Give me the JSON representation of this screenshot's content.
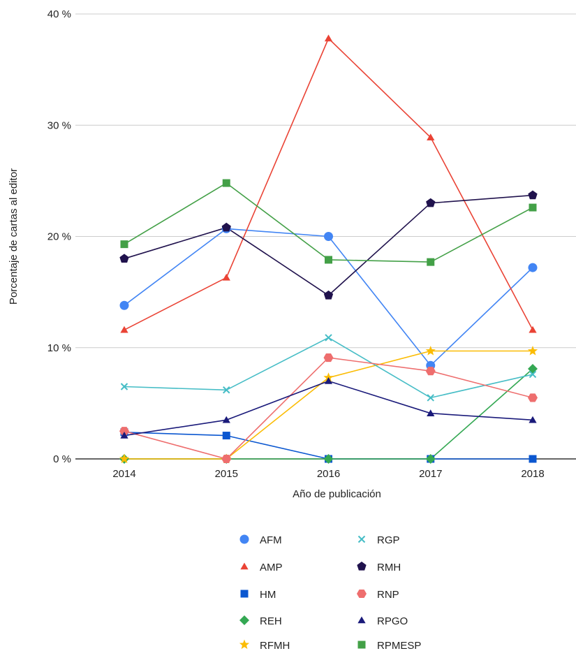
{
  "chart_data": {
    "type": "line",
    "title": "",
    "xlabel": "Año de publicación",
    "ylabel": "Porcentaje de cartas al editor",
    "categories": [
      "2014",
      "2015",
      "2016",
      "2017",
      "2018"
    ],
    "ylim": [
      0,
      40
    ],
    "yticks": [
      0,
      10,
      20,
      30,
      40
    ],
    "ytick_labels": [
      "0 %",
      "10 %",
      "20 %",
      "30 %",
      "40 %"
    ],
    "grid": true,
    "legend_position": "bottom",
    "series": [
      {
        "name": "AFM",
        "color": "#4285f4",
        "marker": "circle",
        "values": [
          13.8,
          20.7,
          20.0,
          8.4,
          17.2
        ]
      },
      {
        "name": "AMP",
        "color": "#ea4335",
        "marker": "triangle",
        "values": [
          11.6,
          16.3,
          37.8,
          28.9,
          11.6
        ]
      },
      {
        "name": "HM",
        "color": "#0b57d0",
        "marker": "square",
        "values": [
          2.4,
          2.1,
          0,
          0,
          0
        ]
      },
      {
        "name": "REH",
        "color": "#34a853",
        "marker": "diamond",
        "values": [
          0,
          0,
          0,
          0,
          8.1
        ]
      },
      {
        "name": "RFMH",
        "color": "#fbbc04",
        "marker": "star",
        "values": [
          0,
          0,
          7.3,
          9.7,
          9.7
        ]
      },
      {
        "name": "RGP",
        "color": "#46bdc6",
        "marker": "x",
        "values": [
          6.5,
          6.2,
          10.9,
          5.5,
          7.6
        ]
      },
      {
        "name": "RMH",
        "color": "#20124d",
        "marker": "pentagon",
        "values": [
          18.0,
          20.8,
          14.7,
          23.0,
          23.7
        ]
      },
      {
        "name": "RNP",
        "color": "#ee6e6e",
        "marker": "hexagon",
        "values": [
          2.5,
          0,
          9.1,
          7.9,
          5.5
        ]
      },
      {
        "name": "RPGO",
        "color": "#1a1a7a",
        "marker": "triangle",
        "values": [
          2.1,
          3.5,
          7.0,
          4.1,
          3.5
        ]
      },
      {
        "name": "RPMESP",
        "color": "#43a047",
        "marker": "square",
        "values": [
          19.3,
          24.8,
          17.9,
          17.7,
          22.6
        ]
      }
    ]
  }
}
